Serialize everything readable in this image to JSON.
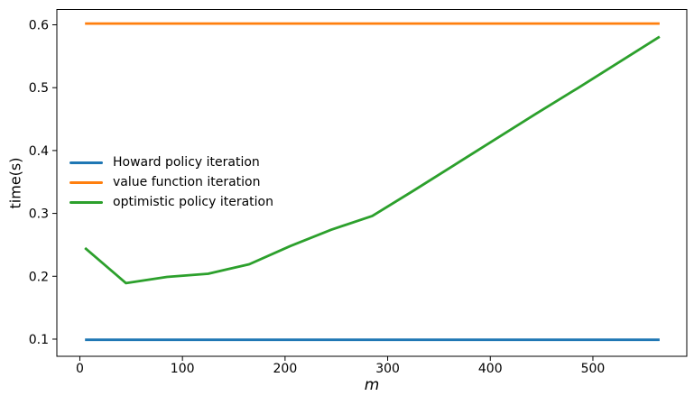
{
  "figure": {
    "background": "#ffffff"
  },
  "chart_data": {
    "type": "line",
    "title": "",
    "xlabel": "m",
    "ylabel": "time(s)",
    "xlim": [
      -22.4,
      591.5
    ],
    "ylim": [
      0.0727,
      0.6244
    ],
    "x_ticks": [
      0,
      100,
      200,
      300,
      400,
      500
    ],
    "y_ticks": [
      0.1,
      0.2,
      0.3,
      0.4,
      0.5,
      0.6
    ],
    "grid": false,
    "legend": {
      "position": "center left",
      "frame": false
    },
    "x": [
      5,
      45,
      85,
      125,
      165,
      205,
      245,
      285,
      325,
      365,
      405,
      445,
      485,
      525,
      565
    ],
    "series": [
      {
        "name": "Howard policy iteration",
        "color": "#1f77b4",
        "values": [
          0.099,
          0.099,
          0.099,
          0.099,
          0.099,
          0.099,
          0.099,
          0.099,
          0.099,
          0.099,
          0.099,
          0.099,
          0.099,
          0.099,
          0.099
        ]
      },
      {
        "name": "value function iteration",
        "color": "#ff7f0e",
        "values": [
          0.602,
          0.602,
          0.602,
          0.602,
          0.602,
          0.602,
          0.602,
          0.602,
          0.602,
          0.602,
          0.602,
          0.602,
          0.602,
          0.602,
          0.602
        ]
      },
      {
        "name": "optimistic policy iteration",
        "color": "#2ca02c",
        "values": [
          0.245,
          0.189,
          0.199,
          0.204,
          0.219,
          0.248,
          0.274,
          0.296,
          0.336,
          0.377,
          0.418,
          0.459,
          0.499,
          0.54,
          0.581
        ]
      }
    ]
  }
}
